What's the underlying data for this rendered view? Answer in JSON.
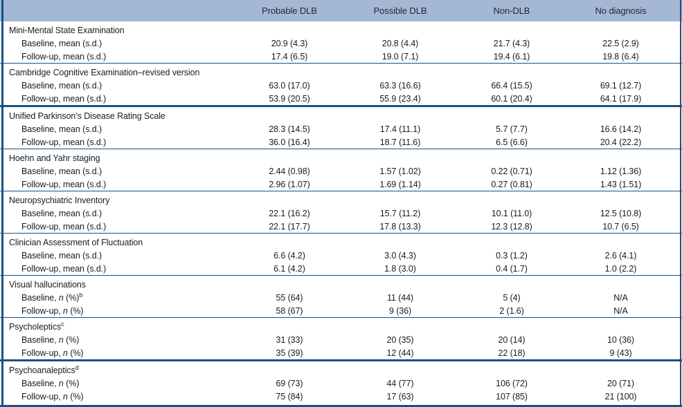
{
  "colors": {
    "header_bg": "#a4b8d6",
    "rule": "#1a4f80",
    "text": "#1b1b1b"
  },
  "table": {
    "columns": [
      "Probable DLB",
      "Possible DLB",
      "Non-DLB",
      "No diagnosis"
    ],
    "sections": [
      {
        "title": "Mini-Mental State Examination",
        "title_sup": "",
        "rule_above": "none",
        "rows": [
          {
            "label": {
              "pre": "Baseline, mean (s.d.)",
              "it": "",
              "post": "",
              "sup": ""
            },
            "values": [
              "20.9 (4.3)",
              "20.8 (4.4)",
              "21.7 (4.3)",
              "22.5 (2.9)"
            ]
          },
          {
            "label": {
              "pre": "Follow-up, mean (s.d.)",
              "it": "",
              "post": "",
              "sup": ""
            },
            "values": [
              "17.4 (6.5)",
              "19.0 (7.1)",
              "19.4 (6.1)",
              "19.8 (6.4)"
            ]
          }
        ]
      },
      {
        "title": "Cambridge Cognitive Examination–revised version",
        "title_sup": "",
        "rule_above": "thin",
        "rows": [
          {
            "label": {
              "pre": "Baseline, mean (s.d.)",
              "it": "",
              "post": "",
              "sup": ""
            },
            "values": [
              "63.0 (17.0)",
              "63.3 (16.6)",
              "66.4 (15.5)",
              "69.1 (12.7)"
            ]
          },
          {
            "label": {
              "pre": "Follow-up, mean (s.d.)",
              "it": "",
              "post": "",
              "sup": ""
            },
            "values": [
              "53.9 (20.5)",
              "55.9 (23.4)",
              "60.1 (20.4)",
              "64.1 (17.9)"
            ]
          }
        ]
      },
      {
        "title": "Unified Parkinson’s Disease Rating Scale",
        "title_sup": "",
        "rule_above": "thick",
        "rows": [
          {
            "label": {
              "pre": "Baseline, mean (s.d.)",
              "it": "",
              "post": "",
              "sup": ""
            },
            "values": [
              "28.3 (14.5)",
              "17.4 (11.1)",
              "5.7 (7.7)",
              "16.6 (14.2)"
            ]
          },
          {
            "label": {
              "pre": "Follow-up, mean (s.d.)",
              "it": "",
              "post": "",
              "sup": ""
            },
            "values": [
              "36.0 (16.4)",
              "18.7 (11.6)",
              "6.5 (6.6)",
              "20.4 (22.2)"
            ]
          }
        ]
      },
      {
        "title": "Hoehn and Yahr staging",
        "title_sup": "",
        "rule_above": "thin",
        "rows": [
          {
            "label": {
              "pre": "Baseline, mean (s.d.)",
              "it": "",
              "post": "",
              "sup": ""
            },
            "values": [
              "2.44 (0.98)",
              "1.57 (1.02)",
              "0.22 (0.71)",
              "1.12 (1.36)"
            ]
          },
          {
            "label": {
              "pre": "Follow-up, mean (s.d.)",
              "it": "",
              "post": "",
              "sup": ""
            },
            "values": [
              "2.96 (1.07)",
              "1.69 (1.14)",
              "0.27 (0.81)",
              "1.43 (1.51)"
            ]
          }
        ]
      },
      {
        "title": "Neuropsychiatric Inventory",
        "title_sup": "",
        "rule_above": "thin",
        "rows": [
          {
            "label": {
              "pre": "Baseline, mean (s.d.)",
              "it": "",
              "post": "",
              "sup": ""
            },
            "values": [
              "22.1 (16.2)",
              "15.7 (11.2)",
              "10.1 (11.0)",
              "12.5 (10.8)"
            ]
          },
          {
            "label": {
              "pre": "Follow-up, mean (s.d.)",
              "it": "",
              "post": "",
              "sup": ""
            },
            "values": [
              "22.1 (17.7)",
              "17.8 (13.3)",
              "12.3 (12.8)",
              "10.7 (6.5)"
            ]
          }
        ]
      },
      {
        "title": "Clinician Assessment of Fluctuation",
        "title_sup": "",
        "rule_above": "thin",
        "rows": [
          {
            "label": {
              "pre": "Baseline, mean (s.d.)",
              "it": "",
              "post": "",
              "sup": ""
            },
            "values": [
              "6.6 (4.2)",
              "3.0 (4.3)",
              "0.3 (1.2)",
              "2.6 (4.1)"
            ]
          },
          {
            "label": {
              "pre": "Follow-up, mean (s.d.)",
              "it": "",
              "post": "",
              "sup": ""
            },
            "values": [
              "6.1 (4.2)",
              "1.8 (3.0)",
              "0.4 (1.7)",
              "1.0 (2.2)"
            ]
          }
        ]
      },
      {
        "title": "Visual hallucinations",
        "title_sup": "",
        "rule_above": "thin",
        "rows": [
          {
            "label": {
              "pre": "Baseline, ",
              "it": "n",
              "post": " (%)",
              "sup": "b"
            },
            "values": [
              "55 (64)",
              "11 (44)",
              "5 (4)",
              "N/A"
            ]
          },
          {
            "label": {
              "pre": "Follow-up, ",
              "it": "n",
              "post": " (%)",
              "sup": ""
            },
            "values": [
              "58 (67)",
              "9 (36)",
              "2 (1.6)",
              "N/A"
            ]
          }
        ]
      },
      {
        "title": "Psycholeptics",
        "title_sup": "c",
        "rule_above": "thin",
        "rows": [
          {
            "label": {
              "pre": "Baseline, ",
              "it": "n",
              "post": " (%)",
              "sup": ""
            },
            "values": [
              "31 (33)",
              "20 (35)",
              "20 (14)",
              "10 (36)"
            ]
          },
          {
            "label": {
              "pre": "Follow-up, ",
              "it": "n",
              "post": " (%)",
              "sup": ""
            },
            "values": [
              "35 (39)",
              "12 (44)",
              "22 (18)",
              "9 (43)"
            ]
          }
        ]
      },
      {
        "title": "Psychoanaleptics",
        "title_sup": "d",
        "rule_above": "thick",
        "rows": [
          {
            "label": {
              "pre": "Baseline, ",
              "it": "n",
              "post": " (%)",
              "sup": ""
            },
            "values": [
              "69 (73)",
              "44 (77)",
              "106 (72)",
              "20 (71)"
            ]
          },
          {
            "label": {
              "pre": "Follow-up, ",
              "it": "n",
              "post": " (%)",
              "sup": ""
            },
            "values": [
              "75 (84)",
              "17 (63)",
              "107 (85)",
              "21 (100)"
            ]
          }
        ]
      }
    ]
  }
}
